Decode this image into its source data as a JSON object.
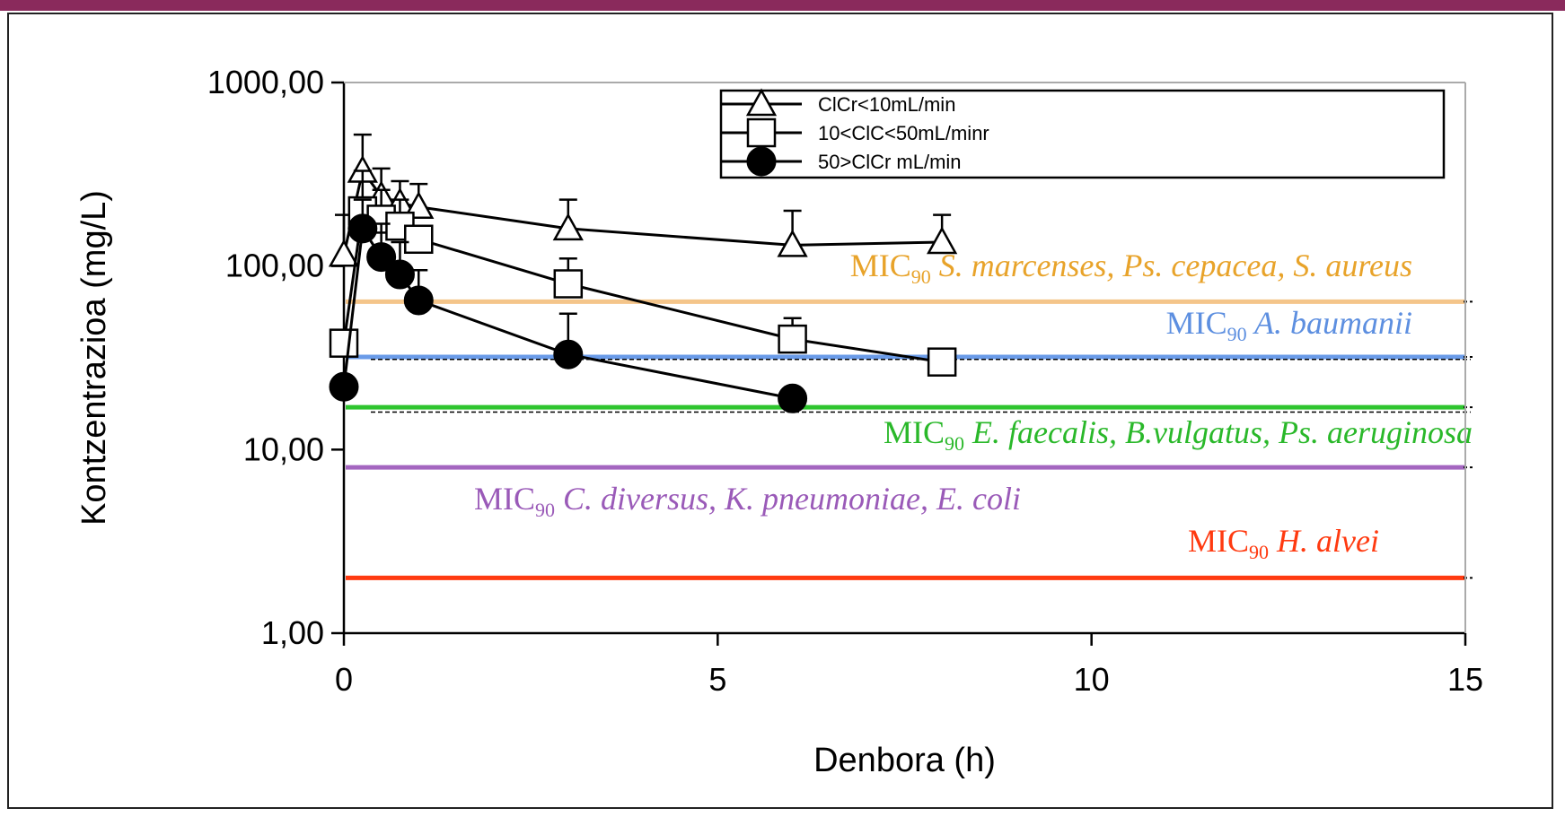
{
  "chart_data": {
    "type": "line",
    "xlabel": "Denbora (h)",
    "ylabel": "Kontzentrazioa (mg/L)",
    "xlim": [
      0,
      15
    ],
    "ylim": [
      1,
      1000
    ],
    "y_scale": "log",
    "x_ticks": [
      "0",
      "5",
      "10",
      "15"
    ],
    "y_ticks": [
      "1,00",
      "10,00",
      "100,00",
      "1000,00"
    ],
    "legend_position": "top-right",
    "series": [
      {
        "name": "ClCr<10mL/min",
        "marker": "triangle-open",
        "x": [
          0,
          0.25,
          0.5,
          0.75,
          1,
          3,
          6,
          8
        ],
        "y": [
          115,
          330,
          240,
          220,
          210,
          160,
          130,
          135
        ],
        "error_upper": [
          190,
          520,
          340,
          290,
          280,
          230,
          200,
          190
        ]
      },
      {
        "name": "10<ClC<50mL/minr",
        "marker": "square-open",
        "x": [
          0,
          0.25,
          0.5,
          0.75,
          1,
          3,
          6,
          8
        ],
        "y": [
          38,
          200,
          180,
          165,
          140,
          80,
          40,
          30
        ],
        "error_upper": [
          null,
          330,
          260,
          230,
          null,
          110,
          52,
          null
        ]
      },
      {
        "name": "50>ClCr mL/min",
        "marker": "circle-filled",
        "x": [
          0,
          0.25,
          0.5,
          0.75,
          1,
          3,
          6
        ],
        "y": [
          22,
          160,
          112,
          90,
          65,
          33,
          19
        ],
        "error_upper": [
          null,
          230,
          170,
          135,
          95,
          55,
          null
        ]
      }
    ],
    "mic_lines": [
      {
        "value": 64,
        "color": "#f4c58a",
        "label_prefix": "MIC",
        "label_sub": "90",
        "label_org": " S. marcenses, Ps. cepacea, S. aureus",
        "label_color": "#e8a32a"
      },
      {
        "value": 32,
        "color": "#6a9be8",
        "label_prefix": "MIC",
        "label_sub": "90",
        "label_org": " A. baumanii",
        "label_color": "#5d8fe0"
      },
      {
        "value": 17,
        "color": "#2ec52e",
        "label_prefix": "MIC",
        "label_sub": "90",
        "label_org": " E. faecalis, B.vulgatus, Ps. aeruginosa",
        "label_color": "#2ab82a"
      },
      {
        "value": 8,
        "color": "#a466c0",
        "label_prefix": "MIC",
        "label_sub": "90",
        "label_org": " C. diversus, K. pneumoniae, E. coli",
        "label_color": "#9a5ab8"
      },
      {
        "value": 2,
        "color": "#ff3a10",
        "label_prefix": "MIC",
        "label_sub": "90",
        "label_org": " H. alvei",
        "label_color": "#ff3a10"
      }
    ],
    "grid": false
  }
}
